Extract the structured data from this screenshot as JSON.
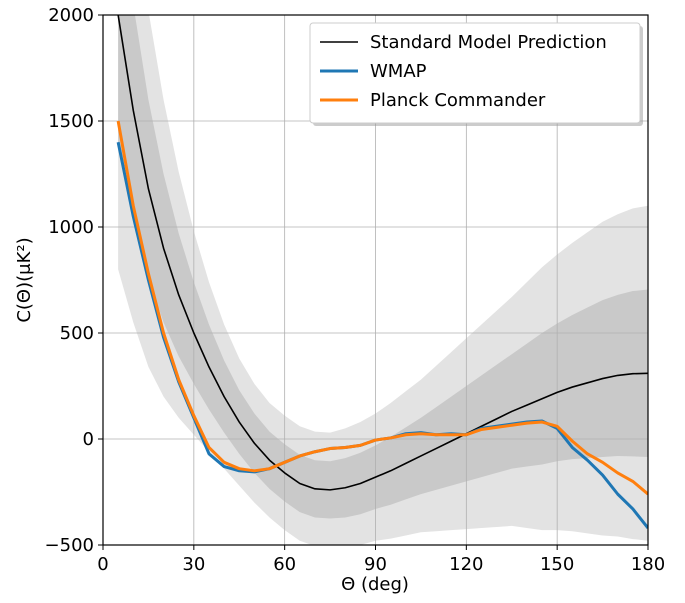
{
  "chart_data": {
    "type": "line",
    "xlabel": "Θ (deg)",
    "ylabel": "C(Θ)(μK²)",
    "x": [
      5,
      10,
      15,
      20,
      25,
      30,
      35,
      40,
      45,
      50,
      55,
      60,
      65,
      70,
      75,
      80,
      85,
      90,
      95,
      100,
      105,
      110,
      115,
      120,
      125,
      130,
      135,
      140,
      145,
      150,
      155,
      160,
      165,
      170,
      175,
      180
    ],
    "series": [
      {
        "name": "Standard Model Prediction",
        "color": "#000000",
        "width": 1.6,
        "values": [
          2000,
          1550,
          1180,
          900,
          680,
          500,
          340,
          200,
          80,
          -20,
          -100,
          -160,
          -210,
          -235,
          -240,
          -230,
          -210,
          -180,
          -150,
          -115,
          -80,
          -45,
          -10,
          25,
          60,
          95,
          130,
          160,
          190,
          220,
          245,
          265,
          285,
          300,
          308,
          310
        ]
      },
      {
        "name": "WMAP",
        "color": "#1f77b4",
        "width": 3,
        "values": [
          1400,
          1050,
          750,
          480,
          270,
          100,
          -70,
          -130,
          -150,
          -155,
          -140,
          -110,
          -80,
          -60,
          -45,
          -40,
          -30,
          -5,
          5,
          25,
          30,
          20,
          25,
          20,
          50,
          60,
          70,
          80,
          85,
          50,
          -40,
          -100,
          -170,
          -260,
          -330,
          -420
        ]
      },
      {
        "name": "Planck Commander",
        "color": "#ff7f0e",
        "width": 3,
        "values": [
          1500,
          1100,
          780,
          500,
          280,
          110,
          -40,
          -110,
          -140,
          -150,
          -140,
          -110,
          -80,
          -60,
          -45,
          -40,
          -30,
          -5,
          5,
          20,
          25,
          20,
          20,
          20,
          45,
          55,
          65,
          75,
          80,
          60,
          -10,
          -70,
          -110,
          -160,
          -200,
          -260
        ]
      }
    ],
    "bands": [
      {
        "color": "#e3e3e3",
        "lower": [
          800,
          550,
          340,
          200,
          100,
          20,
          -60,
          -140,
          -220,
          -300,
          -370,
          -430,
          -480,
          -505,
          -510,
          -510,
          -500,
          -480,
          -470,
          -455,
          -440,
          -435,
          -430,
          -425,
          -420,
          -415,
          -410,
          -420,
          -430,
          -430,
          -435,
          -445,
          -455,
          -460,
          -472,
          -480
        ],
        "upper": [
          3200,
          2550,
          2020,
          1600,
          1260,
          980,
          740,
          540,
          380,
          260,
          170,
          110,
          60,
          35,
          30,
          50,
          80,
          120,
          170,
          225,
          280,
          345,
          410,
          475,
          540,
          605,
          670,
          740,
          810,
          870,
          925,
          975,
          1025,
          1060,
          1088,
          1100
        ]
      },
      {
        "color": "#c9c9c9",
        "lower": [
          1400,
          1050,
          760,
          550,
          390,
          260,
          140,
          30,
          -70,
          -160,
          -235,
          -295,
          -345,
          -370,
          -375,
          -370,
          -355,
          -330,
          -310,
          -285,
          -260,
          -240,
          -220,
          -200,
          -180,
          -160,
          -140,
          -130,
          -120,
          -105,
          -95,
          -90,
          -85,
          -80,
          -82,
          -85
        ],
        "upper": [
          2600,
          2050,
          1600,
          1250,
          970,
          740,
          540,
          370,
          230,
          120,
          35,
          -25,
          -75,
          -100,
          -105,
          -90,
          -65,
          -30,
          10,
          55,
          100,
          150,
          200,
          250,
          300,
          350,
          400,
          450,
          500,
          545,
          585,
          620,
          655,
          680,
          698,
          705
        ]
      }
    ],
    "xlim": [
      0,
      180
    ],
    "xticks": [
      0,
      30,
      60,
      90,
      120,
      150,
      180
    ],
    "ylim": [
      -500,
      2000
    ],
    "yticks": [
      {
        "value": -500,
        "label": "−500"
      },
      0,
      500,
      1000,
      1500,
      2000
    ],
    "grid": true,
    "legend": "upper right"
  }
}
